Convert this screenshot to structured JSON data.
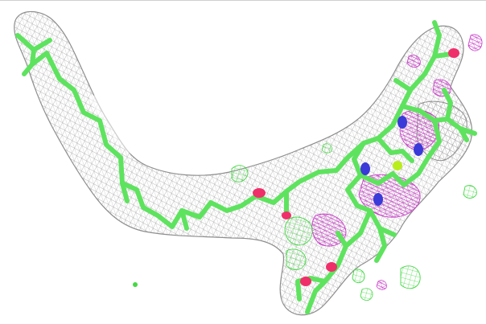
{
  "image": {
    "description_type": "molecular_structure",
    "palette": {
      "background": "#ffffff",
      "density_mesh": "#a8a8a8",
      "stick_carbon": "#5ee35e",
      "oxygen": "#ef2f6a",
      "nitrogen": "#3a3ad8",
      "magnesium": "#b9ee1a",
      "difference_mesh_negative": "#cc39cc",
      "difference_mesh_positive": "#4de04d"
    },
    "components": {
      "density_mesh_icon": "mesh-pattern",
      "molecule_icon": "stick-model",
      "atoms": [
        "oxygen",
        "nitrogen",
        "magnesium"
      ]
    }
  }
}
